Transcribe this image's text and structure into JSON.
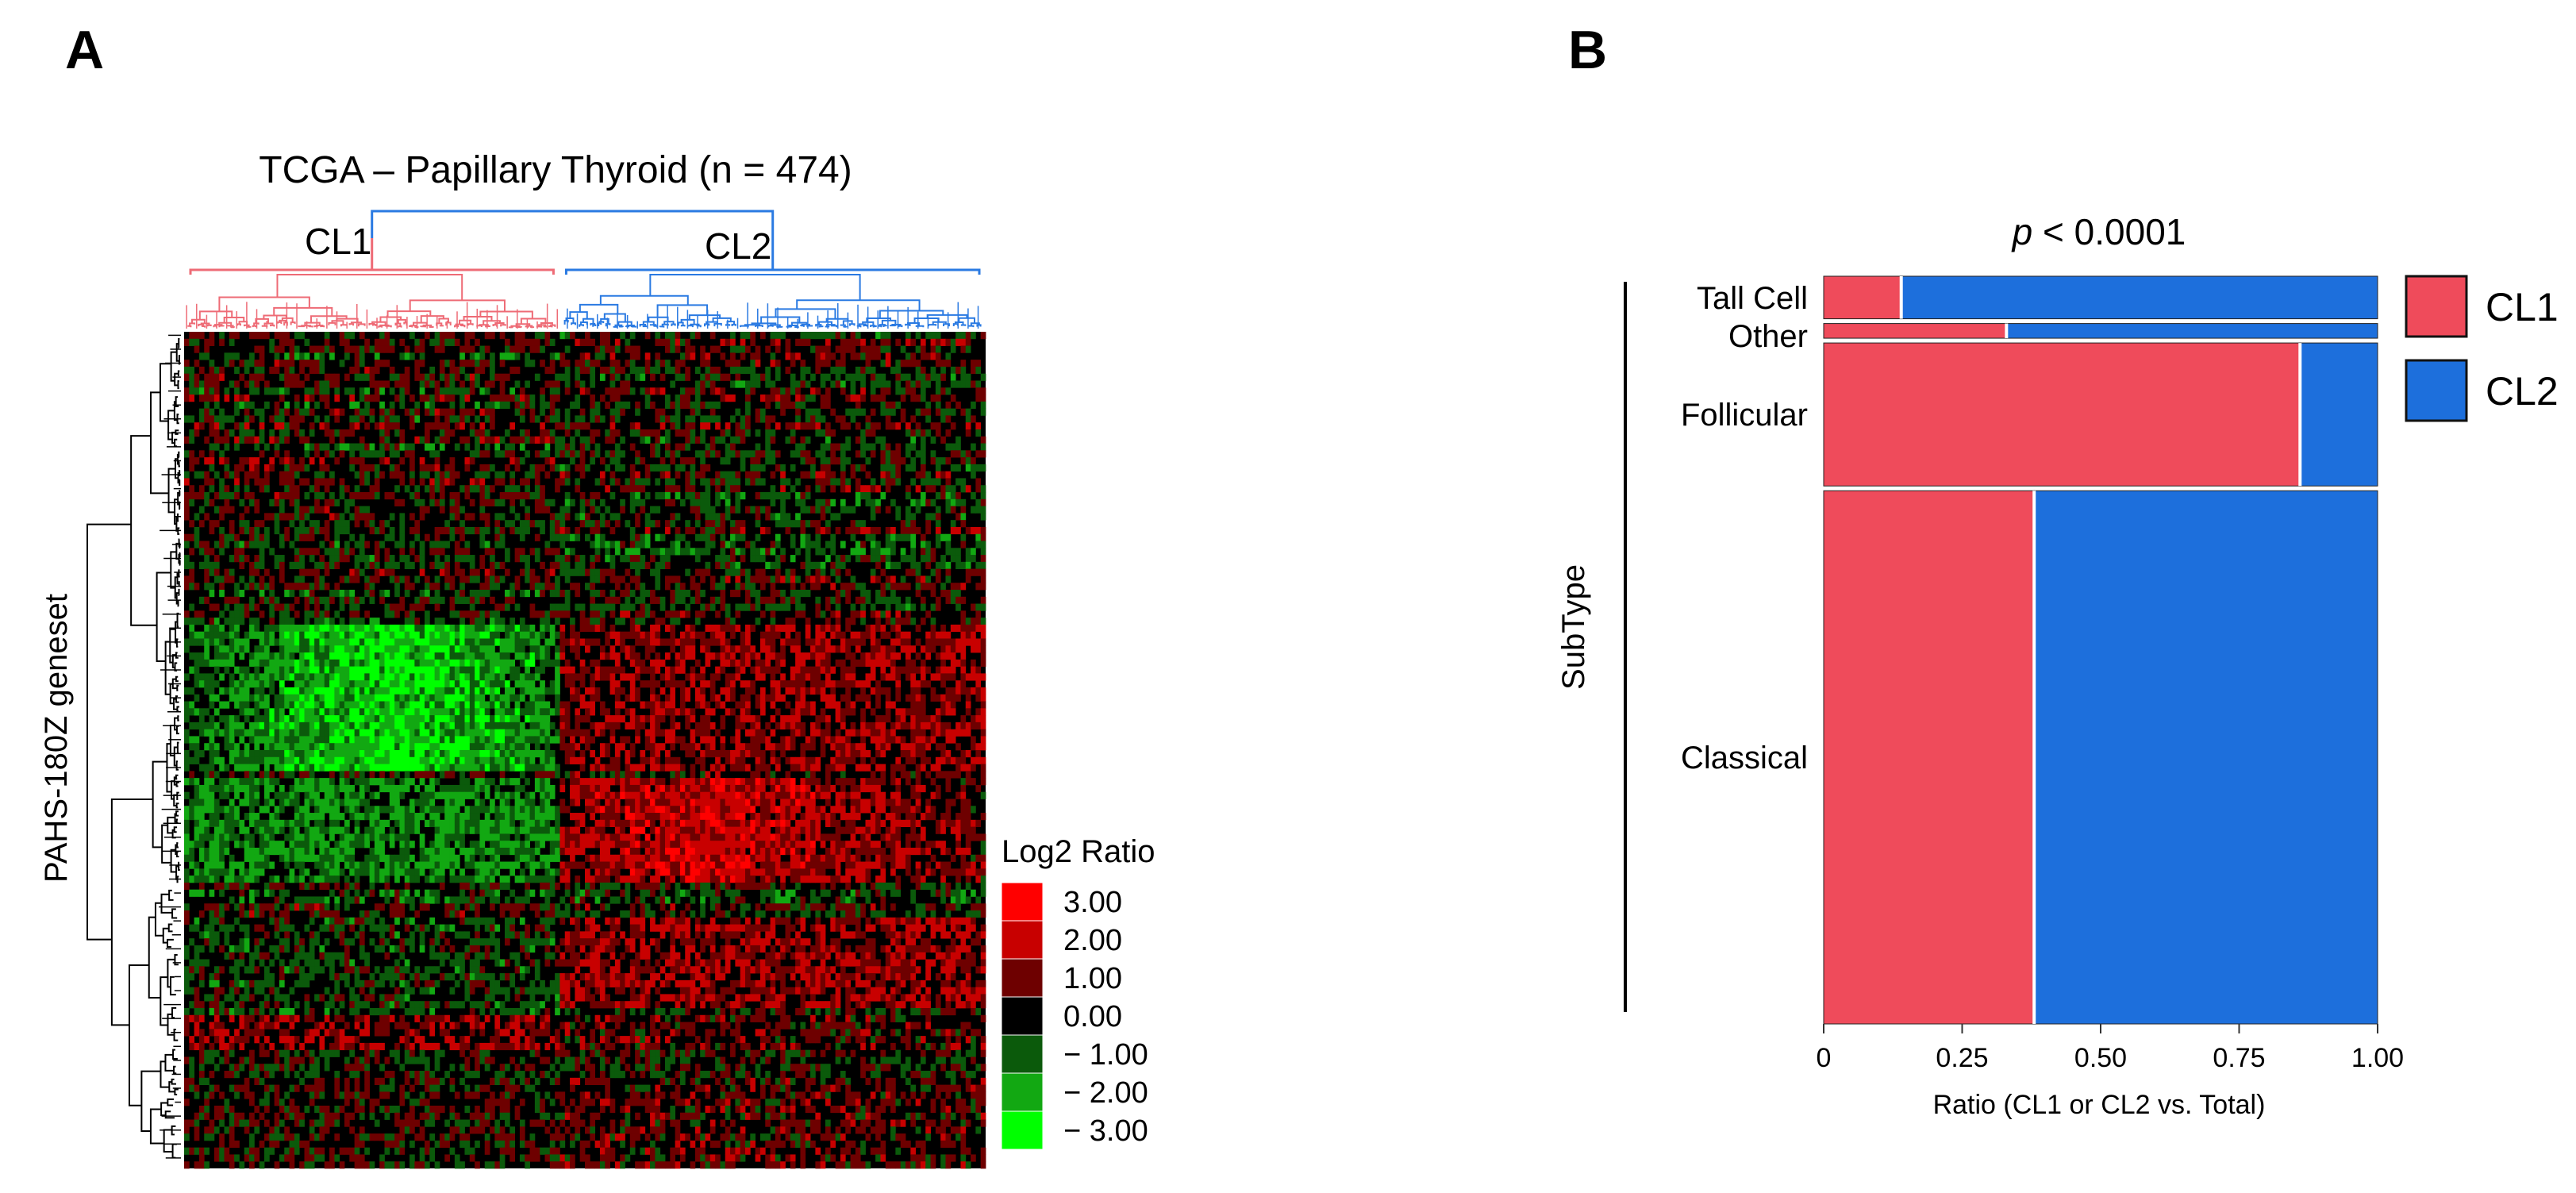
{
  "panel_a": {
    "letter": "A",
    "title": "TCGA – Papillary Thyroid (n = 474)",
    "cluster_labels": [
      "CL1",
      "CL2"
    ],
    "cluster_colors": [
      "#ee6b76",
      "#2a7ae2"
    ],
    "ylabel": "PAHS-180Z geneset",
    "legend": {
      "title": "Log2 Ratio",
      "items": [
        {
          "label": "3.00",
          "color": "#ff0000"
        },
        {
          "label": "2.00",
          "color": "#c80000"
        },
        {
          "label": "1.00",
          "color": "#6e0000"
        },
        {
          "label": "0.00",
          "color": "#000000"
        },
        {
          "label": "− 1.00",
          "color": "#0b5a0b"
        },
        {
          "label": "− 2.00",
          "color": "#12a812"
        },
        {
          "label": "− 3.00",
          "color": "#00ff00"
        }
      ]
    }
  },
  "panel_b": {
    "letter": "B",
    "pvalue_italic": "p",
    "pvalue_rest": " < 0.0001",
    "legend": [
      {
        "label": "CL1",
        "color": "#ef4b5b"
      },
      {
        "label": "CL2",
        "color": "#1d6fdc"
      }
    ]
  },
  "chart_data": [
    {
      "type": "heatmap",
      "title": "TCGA – Papillary Thyroid (n = 474)",
      "xlabel": "",
      "ylabel": "PAHS-180Z geneset",
      "n_samples": 474,
      "clusters": [
        {
          "name": "CL1",
          "color": "#ee6b76",
          "sample_fraction": 0.47
        },
        {
          "name": "CL2",
          "color": "#2a7ae2",
          "sample_fraction": 0.53
        }
      ],
      "color_scale": {
        "title": "Log2 Ratio",
        "values": [
          3.0,
          2.0,
          1.0,
          0.0,
          -1.0,
          -2.0,
          -3.0
        ]
      }
    },
    {
      "type": "mosaic",
      "title": "p < 0.0001",
      "xlabel": "Ratio (CL1 or CL2 vs. Total)",
      "ylabel": "SubType",
      "xlim": [
        0,
        1
      ],
      "xticks": [
        "0",
        "0.25",
        "0.50",
        "0.75",
        "1.00"
      ],
      "xtick_values": [
        0,
        0.25,
        0.5,
        0.75,
        1.0
      ],
      "series": [
        {
          "name": "CL1",
          "color": "#ef4b5b"
        },
        {
          "name": "CL2",
          "color": "#1d6fdc"
        }
      ],
      "categories": [
        {
          "name": "Tall Cell",
          "share_of_total": 0.058,
          "cl1_ratio": 0.14
        },
        {
          "name": "Other",
          "share_of_total": 0.02,
          "cl1_ratio": 0.33
        },
        {
          "name": "Follicular",
          "share_of_total": 0.195,
          "cl1_ratio": 0.86
        },
        {
          "name": "Classical",
          "share_of_total": 0.727,
          "cl1_ratio": 0.38
        }
      ]
    }
  ]
}
